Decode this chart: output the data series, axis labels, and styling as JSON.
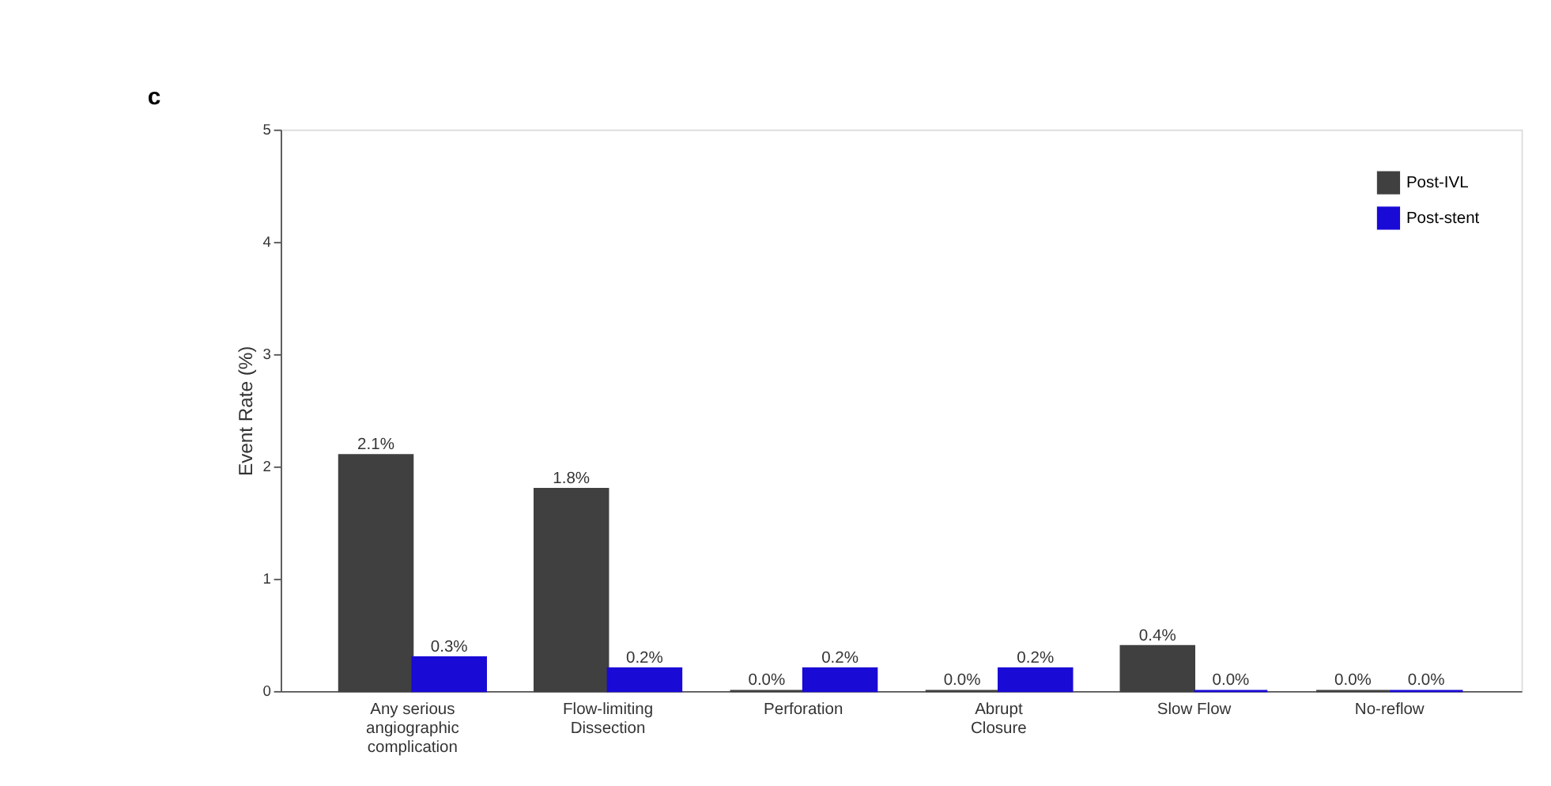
{
  "chart_data": {
    "type": "bar",
    "ylabel": "Event Rate (%)",
    "annotations": [
      "c"
    ],
    "categories": [
      "Any serious\nangiographic\ncomplication",
      "Flow-limiting\nDissection",
      "Perforation",
      "Abrupt\nClosure",
      "Slow Flow",
      "No-reflow"
    ],
    "series": [
      {
        "name": "Post-IVL",
        "color": "#404040",
        "values": [
          2.1,
          1.8,
          0.0,
          0.0,
          0.4,
          0.0
        ],
        "value_labels": [
          "2.1%",
          "1.8%",
          "0.0%",
          "0.0%",
          "0.4%",
          "0.0%"
        ]
      },
      {
        "name": "Post-stent",
        "color": "#1a0ad6",
        "values": [
          0.3,
          0.2,
          0.2,
          0.2,
          0.0,
          0.0
        ],
        "value_labels": [
          "0.3%",
          "0.2%",
          "0.2%",
          "0.2%",
          "0.0%",
          "0.0%"
        ]
      }
    ],
    "ylim": [
      0,
      5
    ],
    "yticks": [
      0,
      1,
      2,
      3,
      4,
      5
    ],
    "grid": false,
    "legend": "top right"
  }
}
